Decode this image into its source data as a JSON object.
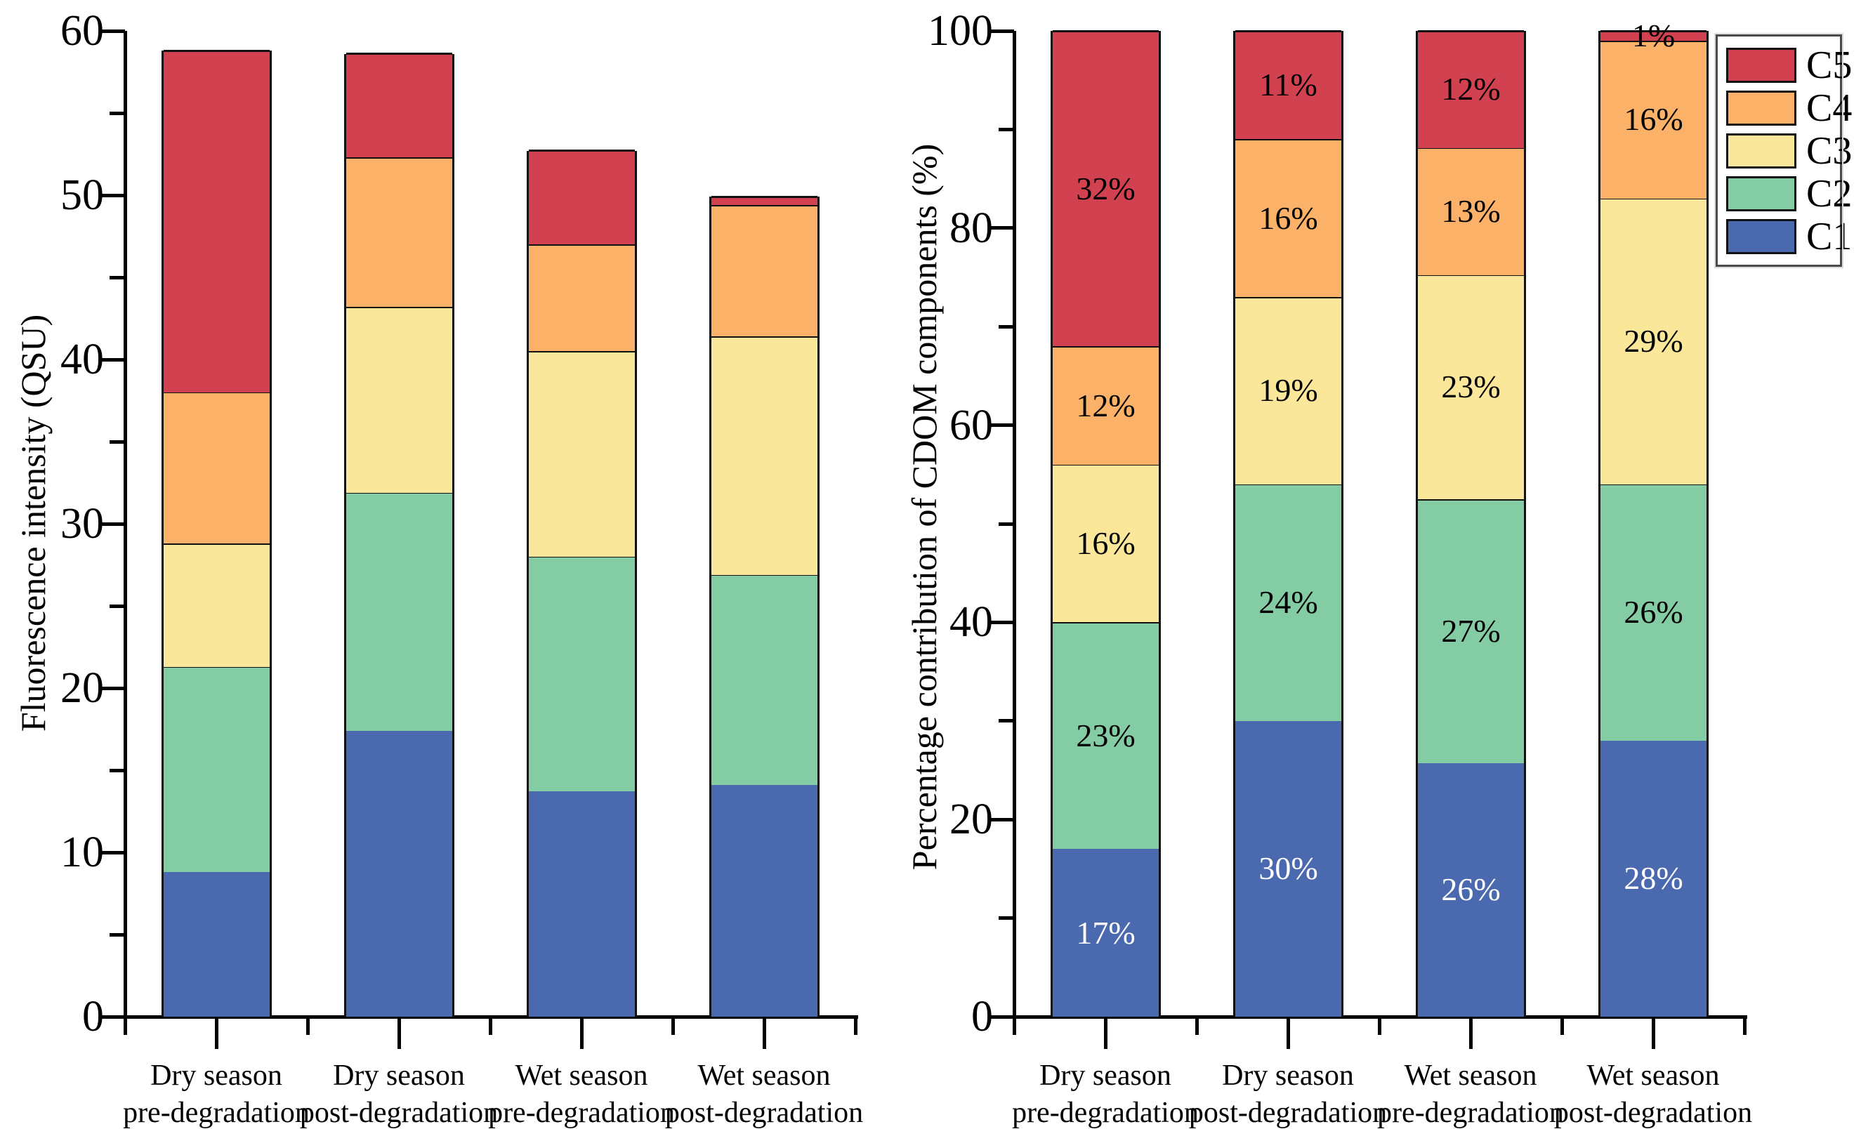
{
  "chart_data": [
    {
      "type": "bar",
      "stacked": true,
      "title": "",
      "xlabel": "",
      "ylabel": "Fluorescence intensity (QSU)",
      "ylim": [
        0,
        60
      ],
      "yticks_major": [
        0,
        10,
        20,
        30,
        40,
        50,
        60
      ],
      "yticks_minor": [
        5,
        15,
        25,
        35,
        45,
        55
      ],
      "grid": false,
      "legend_position": "none",
      "categories": [
        [
          "Dry season",
          "pre-degradation"
        ],
        [
          "Dry season",
          "post-degradation"
        ],
        [
          "Wet season",
          "pre-degradation"
        ],
        [
          "Wet season",
          "post-degradation"
        ]
      ],
      "series": [
        {
          "name": "C1",
          "color": "#4B69AE",
          "values": [
            8.8,
            17.4,
            13.7,
            14.1
          ]
        },
        {
          "name": "C2",
          "color": "#83CCA4",
          "values": [
            12.5,
            14.5,
            14.3,
            12.8
          ]
        },
        {
          "name": "C3",
          "color": "#FBE79A",
          "values": [
            7.5,
            11.3,
            12.5,
            14.5
          ]
        },
        {
          "name": "C4",
          "color": "#FBB268",
          "values": [
            9.2,
            9.1,
            6.5,
            8.0
          ]
        },
        {
          "name": "C5",
          "color": "#D24150",
          "values": [
            20.8,
            6.3,
            5.7,
            0.5
          ]
        }
      ],
      "bar_totals_qsu": [
        58.8,
        58.6,
        52.7,
        49.9
      ],
      "data_labels": false
    },
    {
      "type": "bar",
      "stacked": true,
      "stacked_to_100": true,
      "title": "",
      "xlabel": "",
      "ylabel": "Percentage contribution of CDOM components (%)",
      "ylim": [
        0,
        100
      ],
      "yticks_major": [
        0,
        20,
        40,
        60,
        80,
        100
      ],
      "yticks_minor": [
        10,
        30,
        50,
        70,
        90
      ],
      "grid": false,
      "legend_position": "top-right",
      "categories": [
        [
          "Dry season",
          "pre-degradation"
        ],
        [
          "Dry season",
          "post-degradation"
        ],
        [
          "Wet season",
          "pre-degradation"
        ],
        [
          "Wet season",
          "post-degradation"
        ]
      ],
      "series": [
        {
          "name": "C1",
          "color": "#4B69AE",
          "label_color": "#ffffff",
          "values": [
            17,
            30,
            26,
            28
          ],
          "labels": [
            "17%",
            "30%",
            "26%",
            "28%"
          ]
        },
        {
          "name": "C2",
          "color": "#83CCA4",
          "label_color": "#000000",
          "values": [
            23,
            24,
            27,
            26
          ],
          "labels": [
            "23%",
            "24%",
            "27%",
            "26%"
          ]
        },
        {
          "name": "C3",
          "color": "#FBE79A",
          "label_color": "#000000",
          "values": [
            16,
            19,
            23,
            29
          ],
          "labels": [
            "16%",
            "19%",
            "23%",
            "29%"
          ]
        },
        {
          "name": "C4",
          "color": "#FBB268",
          "label_color": "#000000",
          "values": [
            12,
            16,
            13,
            16
          ],
          "labels": [
            "12%",
            "16%",
            "13%",
            "16%"
          ]
        },
        {
          "name": "C5",
          "color": "#D24150",
          "label_color": "#000000",
          "values": [
            32,
            11,
            12,
            1
          ],
          "labels": [
            "32%",
            "11%",
            "12%",
            "1%"
          ]
        }
      ],
      "data_labels": true
    }
  ],
  "legend": {
    "entries": [
      {
        "label": "C5",
        "color": "#D24150"
      },
      {
        "label": "C4",
        "color": "#FBB268"
      },
      {
        "label": "C3",
        "color": "#FBE79A"
      },
      {
        "label": "C2",
        "color": "#83CCA4"
      },
      {
        "label": "C1",
        "color": "#4B69AE"
      }
    ]
  }
}
